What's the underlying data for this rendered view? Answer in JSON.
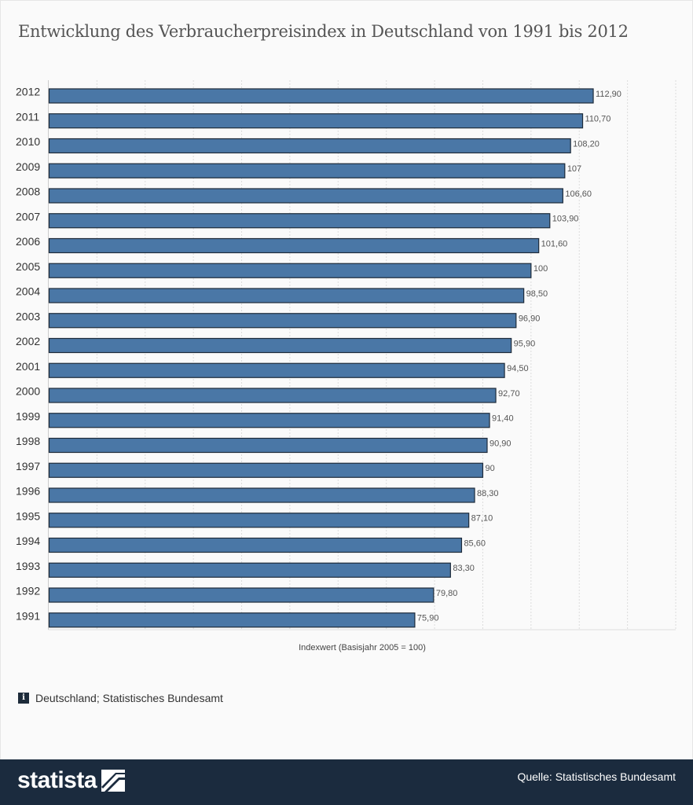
{
  "title": "Entwicklung des Verbraucherpreisindex in Deutschland von 1991 bis 2012",
  "info_text": "Deutschland; Statistisches Bundesamt",
  "info_icon": "i",
  "footer": {
    "brand": "statista",
    "source": "Quelle: Statistisches Bundesamt"
  },
  "colors": {
    "bar_fill": "#4a77a6",
    "bar_stroke": "#1e2b3a",
    "footer_bg": "#1b2b3e"
  },
  "chart_data": {
    "type": "bar",
    "orientation": "horizontal",
    "categories": [
      "2012",
      "2011",
      "2010",
      "2009",
      "2008",
      "2007",
      "2006",
      "2005",
      "2004",
      "2003",
      "2002",
      "2001",
      "2000",
      "1999",
      "1998",
      "1997",
      "1996",
      "1995",
      "1994",
      "1993",
      "1992",
      "1991"
    ],
    "values": [
      112.9,
      110.7,
      108.2,
      107,
      106.6,
      103.9,
      101.6,
      100,
      98.5,
      96.9,
      95.9,
      94.5,
      92.7,
      91.4,
      90.9,
      90,
      88.3,
      87.1,
      85.6,
      83.3,
      79.8,
      75.9
    ],
    "value_labels": [
      "112,90",
      "110,70",
      "108,20",
      "107",
      "106,60",
      "103,90",
      "101,60",
      "100",
      "98,50",
      "96,90",
      "95,90",
      "94,50",
      "92,70",
      "91,40",
      "90,90",
      "90",
      "88,30",
      "87,10",
      "85,60",
      "83,30",
      "79,80",
      "75,90"
    ],
    "xlabel": "Indexwert (Basisjahr 2005 = 100)",
    "ylabel": "",
    "xlim": [
      0,
      130
    ],
    "grid": true,
    "legend": "none"
  }
}
